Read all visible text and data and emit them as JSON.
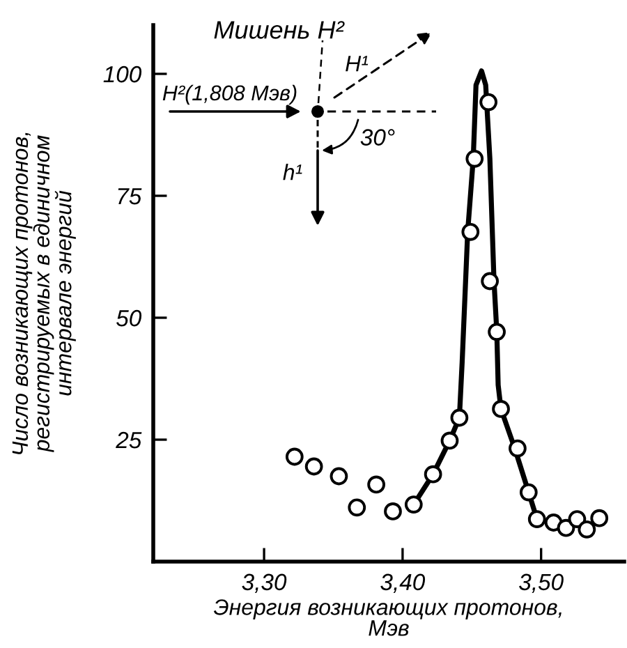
{
  "chart_data": {
    "type": "scatter",
    "xlabel": "Энергия возникающих протонов,\nМэв",
    "ylabel": "Число возникающих протонов,\nрегистрируемых в единичном\nинтервале энергий",
    "annotations": [
      "Мишень H²",
      "H²(1,808 Мэв)",
      "H¹",
      "h¹",
      "30°"
    ],
    "xlim": [
      3.22,
      3.56
    ],
    "ylim": [
      0,
      110
    ],
    "xticks": [
      {
        "value": 3.3,
        "label": "3,30"
      },
      {
        "value": 3.4,
        "label": "3,40"
      },
      {
        "value": 3.5,
        "label": "3,50"
      }
    ],
    "yticks": [
      25,
      50,
      75,
      100
    ],
    "grid": false,
    "series": [
      {
        "color": "#000000",
        "marker": "circle",
        "x": [
          3.322,
          3.336,
          3.354,
          3.367,
          3.381,
          3.393,
          3.408,
          3.422,
          3.434,
          3.441,
          3.449,
          3.452,
          3.462,
          3.463,
          3.468,
          3.471,
          3.483,
          3.491,
          3.497,
          3.509,
          3.518,
          3.526,
          3.533,
          3.542
        ],
        "values": [
          21.5,
          19.5,
          17.5,
          11.1,
          15.8,
          10.3,
          11.7,
          17.9,
          24.8,
          29.5,
          67.6,
          82.6,
          94.2,
          57.5,
          47.1,
          31.3,
          23.2,
          14.2,
          8.7,
          8.0,
          6.9,
          8.7,
          6.6,
          8.9
        ]
      },
      {
        "type": "line",
        "color": "#000000",
        "marker": "none",
        "line_style": "solid",
        "x": [
          3.408,
          3.422,
          3.434,
          3.441,
          3.443,
          3.447,
          3.451,
          3.453,
          3.457,
          3.46,
          3.463,
          3.466,
          3.468,
          3.469,
          3.471,
          3.481,
          3.491,
          3.497
        ],
        "values": [
          11.7,
          17.9,
          24.8,
          29.5,
          40.9,
          67.6,
          82.6,
          97.7,
          100.6,
          97.7,
          82.7,
          57.5,
          47.2,
          36.2,
          31.3,
          23.2,
          14.2,
          8.7
        ]
      }
    ]
  }
}
